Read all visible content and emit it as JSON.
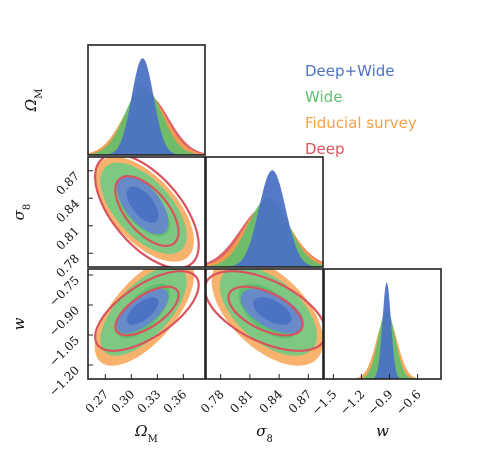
{
  "chart_data": {
    "type": "corner",
    "parameters": [
      {
        "key": "om",
        "label": "Ω_M",
        "sub": "M",
        "ticks": [
          0.27,
          0.3,
          0.33,
          0.36
        ],
        "tick_labels": [
          "0.27",
          "0.30",
          "0.33",
          "0.36"
        ],
        "range": [
          0.25,
          0.385
        ]
      },
      {
        "key": "s8",
        "label": "σ_8",
        "sub": "8",
        "ticks": [
          0.78,
          0.81,
          0.84,
          0.87
        ],
        "tick_labels": [
          "0.78",
          "0.81",
          "0.84",
          "0.87"
        ],
        "range": [
          0.765,
          0.885
        ]
      },
      {
        "key": "w",
        "label": "w",
        "sub": "",
        "ticks": [
          -1.2,
          -1.05,
          -0.9,
          -0.75
        ],
        "tick_labels": [
          "−1.20",
          "−1.05",
          "−0.90",
          "−0.75"
        ],
        "w_col_ticks": [
          -1.5,
          -1.2,
          -0.9,
          -0.6
        ],
        "w_col_tick_labels": [
          "−1.5",
          "−1.2",
          "−0.9",
          "−0.6"
        ],
        "range": [
          -1.27,
          -0.72
        ],
        "col_range": [
          -1.6,
          -0.35
        ]
      }
    ],
    "series": [
      {
        "name": "Deep+Wide",
        "color": "#4c72c4",
        "mean": [
          0.313,
          0.833,
          -0.93
        ],
        "sigma": [
          0.012,
          0.013,
          0.045
        ],
        "style": "filled"
      },
      {
        "name": "Wide",
        "color": "#5fbf6e",
        "mean": [
          0.314,
          0.829,
          -0.93
        ],
        "sigma": [
          0.02,
          0.02,
          0.09
        ],
        "style": "filled"
      },
      {
        "name": "Fiducial survey",
        "color": "#f5a04a",
        "mean": [
          0.315,
          0.828,
          -0.93
        ],
        "sigma": [
          0.023,
          0.023,
          0.11
        ],
        "style": "filled"
      },
      {
        "name": "Deep",
        "color": "#d9535e",
        "mean": [
          0.318,
          0.826,
          -0.93
        ],
        "sigma": [
          0.024,
          0.025,
          0.08
        ],
        "style": "outline"
      }
    ],
    "correlations": {
      "om_s8": -0.6,
      "om_w": 0.65,
      "s8_w": -0.55
    },
    "legend_placement": "top-right",
    "grid": false
  }
}
